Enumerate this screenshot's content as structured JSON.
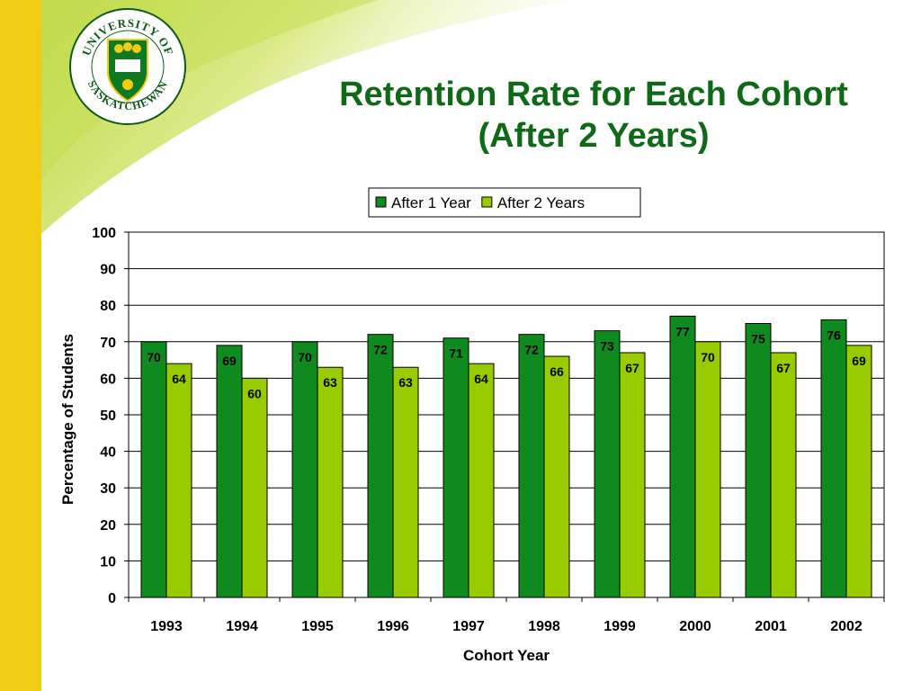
{
  "logo": {
    "text_top": "UNIVERSITY OF",
    "text_bottom": "SASKATCHEWAN"
  },
  "slide": {
    "title_line1": "Retention Rate for Each Cohort",
    "title_line2": "(After 2 Years)"
  },
  "colors": {
    "after_1_year": "#0f8a1e",
    "after_2_years": "#99cc00",
    "title": "#0e6a17",
    "side_bar": "#f2cc14"
  },
  "chart_data": {
    "type": "bar",
    "title": "Retention Rate for Each Cohort (After 2 Years)",
    "xlabel": "Cohort Year",
    "ylabel": "Percentage of Students",
    "categories": [
      "1993",
      "1994",
      "1995",
      "1996",
      "1997",
      "1998",
      "1999",
      "2000",
      "2001",
      "2002"
    ],
    "series": [
      {
        "name": "After 1 Year",
        "values": [
          70,
          69,
          70,
          72,
          71,
          72,
          73,
          77,
          75,
          76
        ],
        "color": "#0f8a1e"
      },
      {
        "name": "After 2 Years",
        "values": [
          64,
          60,
          63,
          63,
          64,
          66,
          67,
          70,
          67,
          69
        ],
        "color": "#99cc00"
      }
    ],
    "ylim": [
      0,
      100
    ],
    "yticks": [
      0,
      10,
      20,
      30,
      40,
      50,
      60,
      70,
      80,
      90,
      100
    ],
    "grid": true,
    "legend_position": "top"
  }
}
